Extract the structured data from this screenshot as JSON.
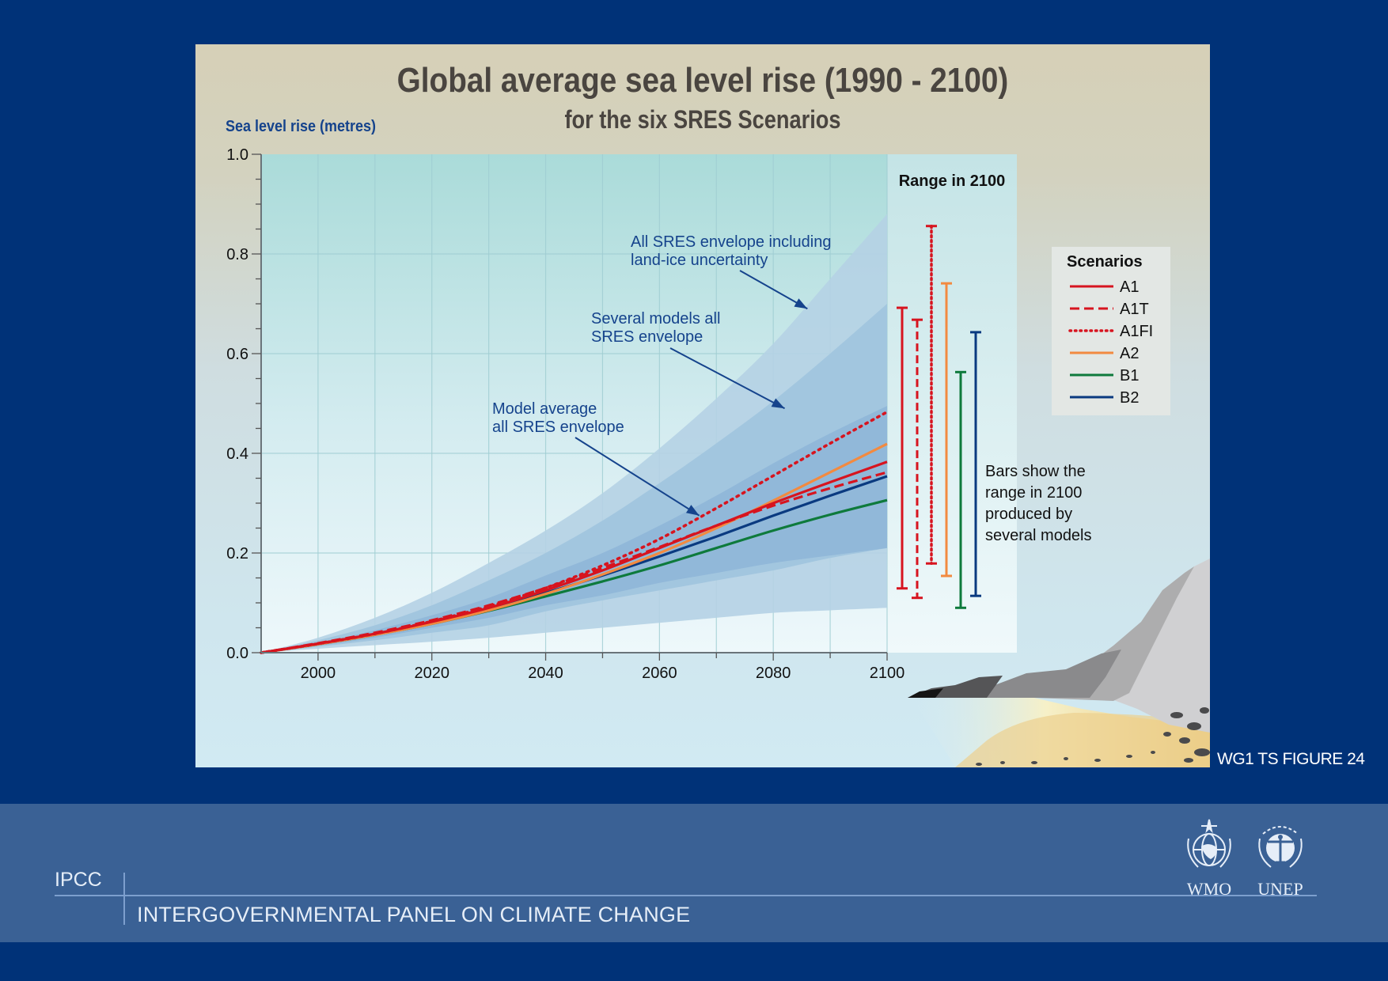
{
  "figure": {
    "id_label": "WG1 TS FIGURE 24"
  },
  "footer": {
    "org_short": "IPCC",
    "org_full": "INTERGOVERNMENTAL PANEL ON CLIMATE CHANGE",
    "logos": [
      {
        "name": "WMO",
        "icon": "wmo-emblem-icon"
      },
      {
        "name": "UNEP",
        "icon": "unep-emblem-icon"
      }
    ]
  },
  "chart_data": {
    "type": "line",
    "title": "Global average sea level rise (1990 - 2100)",
    "subtitle": "for the six SRES Scenarios",
    "xlabel": "",
    "ylabel": "Sea level rise (metres)",
    "xlim": [
      1990,
      2100
    ],
    "ylim": [
      0.0,
      1.0
    ],
    "x_ticks": [
      2000,
      2020,
      2040,
      2060,
      2080,
      2100
    ],
    "x_minor_step": 10,
    "y_ticks": [
      "0.0",
      "0.2",
      "0.4",
      "0.6",
      "0.8",
      "1.0"
    ],
    "y_minor_step": 0.05,
    "grid": true,
    "x": [
      1990,
      2000,
      2010,
      2020,
      2030,
      2040,
      2050,
      2060,
      2070,
      2080,
      2090,
      2100
    ],
    "envelopes": [
      {
        "name": "All SRES envelope including land-ice uncertainty",
        "color": "#b5d2e4",
        "upper": [
          0.0,
          0.03,
          0.07,
          0.12,
          0.18,
          0.245,
          0.32,
          0.41,
          0.51,
          0.62,
          0.75,
          0.88
        ],
        "lower": [
          0.0,
          0.008,
          0.015,
          0.022,
          0.03,
          0.04,
          0.05,
          0.06,
          0.07,
          0.08,
          0.085,
          0.09
        ]
      },
      {
        "name": "Several models all SRES envelope",
        "color": "#a0c4de",
        "upper": [
          0.0,
          0.025,
          0.055,
          0.095,
          0.145,
          0.2,
          0.265,
          0.34,
          0.42,
          0.505,
          0.6,
          0.7
        ],
        "lower": [
          0.0,
          0.012,
          0.025,
          0.04,
          0.055,
          0.083,
          0.105,
          0.125,
          0.145,
          0.165,
          0.19,
          0.21
        ]
      },
      {
        "name": "Model average all SRES envelope",
        "color": "#8fb6d8",
        "upper": [
          0.0,
          0.02,
          0.045,
          0.075,
          0.11,
          0.155,
          0.2,
          0.255,
          0.315,
          0.38,
          0.44,
          0.495
        ],
        "lower": [
          0.0,
          0.014,
          0.03,
          0.05,
          0.07,
          0.095,
          0.115,
          0.14,
          0.16,
          0.18,
          0.195,
          0.21
        ]
      }
    ],
    "series": [
      {
        "name": "A1",
        "color": "#d7141f",
        "dash": "solid",
        "values": [
          0.0,
          0.018,
          0.038,
          0.062,
          0.09,
          0.125,
          0.165,
          0.21,
          0.255,
          0.3,
          0.342,
          0.383
        ]
      },
      {
        "name": "A1T",
        "color": "#d7141f",
        "dash": "dashed",
        "values": [
          0.0,
          0.019,
          0.04,
          0.065,
          0.095,
          0.13,
          0.17,
          0.212,
          0.255,
          0.295,
          0.33,
          0.362
        ]
      },
      {
        "name": "A1FI",
        "color": "#d7141f",
        "dash": "dotted",
        "values": [
          0.0,
          0.018,
          0.038,
          0.063,
          0.093,
          0.13,
          0.175,
          0.228,
          0.29,
          0.355,
          0.42,
          0.483
        ]
      },
      {
        "name": "A2",
        "color": "#f28a40",
        "dash": "solid",
        "values": [
          0.0,
          0.017,
          0.036,
          0.058,
          0.085,
          0.118,
          0.157,
          0.2,
          0.25,
          0.305,
          0.362,
          0.419
        ]
      },
      {
        "name": "B1",
        "color": "#0e7a3c",
        "dash": "solid",
        "values": [
          0.0,
          0.017,
          0.036,
          0.058,
          0.084,
          0.113,
          0.143,
          0.175,
          0.21,
          0.245,
          0.277,
          0.306
        ]
      },
      {
        "name": "B2",
        "color": "#0a3a80",
        "dash": "solid",
        "values": [
          0.0,
          0.018,
          0.037,
          0.06,
          0.088,
          0.12,
          0.155,
          0.193,
          0.233,
          0.275,
          0.315,
          0.354
        ]
      }
    ],
    "range_panel": {
      "title": "Range in 2100",
      "note": [
        "Bars show  the",
        "range in 2100",
        "produced by",
        "several models"
      ],
      "bars": [
        {
          "name": "A1",
          "min": 0.129,
          "max": 0.692
        },
        {
          "name": "A1T",
          "min": 0.11,
          "max": 0.668
        },
        {
          "name": "A1FI",
          "min": 0.179,
          "max": 0.856
        },
        {
          "name": "A2",
          "min": 0.154,
          "max": 0.741
        },
        {
          "name": "B1",
          "min": 0.09,
          "max": 0.563
        },
        {
          "name": "B2",
          "min": 0.114,
          "max": 0.643
        }
      ]
    },
    "legend": {
      "title": "Scenarios",
      "position": "right",
      "entries": [
        "A1",
        "A1T",
        "A1FI",
        "A2",
        "B1",
        "B2"
      ]
    },
    "annotations": [
      {
        "lines": [
          "All SRES envelope including",
          "land-ice uncertainty"
        ],
        "points_to": [
          2086,
          0.69
        ]
      },
      {
        "lines": [
          "Several models all",
          "SRES envelope"
        ],
        "points_to": [
          2082,
          0.49
        ]
      },
      {
        "lines": [
          "Model average",
          "all SRES envelope"
        ],
        "points_to": [
          2067,
          0.275
        ]
      }
    ]
  }
}
